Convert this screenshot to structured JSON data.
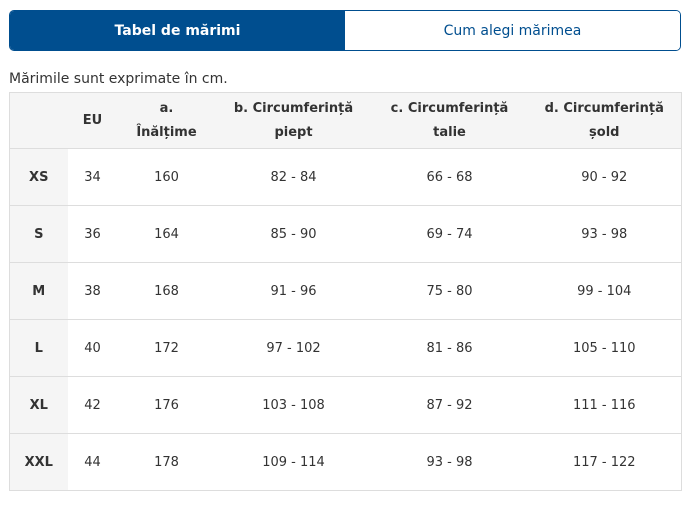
{
  "tabs": [
    {
      "label": "Tabel de mărimi",
      "active": true
    },
    {
      "label": "Cum alegi mărimea",
      "active": false
    }
  ],
  "note": "Mărimile sunt exprimate în cm.",
  "table": {
    "headers": [
      {
        "line1": "",
        "line2": ""
      },
      {
        "line1": "EU",
        "line2": ""
      },
      {
        "line1": "a.",
        "line2": "Înălțime"
      },
      {
        "line1": "b. Circumferință",
        "line2": "piept"
      },
      {
        "line1": "c. Circumferință",
        "line2": "talie"
      },
      {
        "line1": "d. Circumferință",
        "line2": "șold"
      }
    ],
    "rows": [
      [
        "XS",
        "34",
        "160",
        "82 - 84",
        "66 - 68",
        "90 - 92"
      ],
      [
        "S",
        "36",
        "164",
        "85 - 90",
        "69 - 74",
        "93 - 98"
      ],
      [
        "M",
        "38",
        "168",
        "91 - 96",
        "75 - 80",
        "99 - 104"
      ],
      [
        "L",
        "40",
        "172",
        "97 - 102",
        "81 - 86",
        "105 - 110"
      ],
      [
        "XL",
        "42",
        "176",
        "103 - 108",
        "87 - 92",
        "111 - 116"
      ],
      [
        "XXL",
        "44",
        "178",
        "109 - 114",
        "93 - 98",
        "117 - 122"
      ]
    ]
  },
  "colors": {
    "brand_blue": "#004e8f",
    "header_bg": "#f5f5f5",
    "border": "#dddddd",
    "text": "#333333"
  }
}
